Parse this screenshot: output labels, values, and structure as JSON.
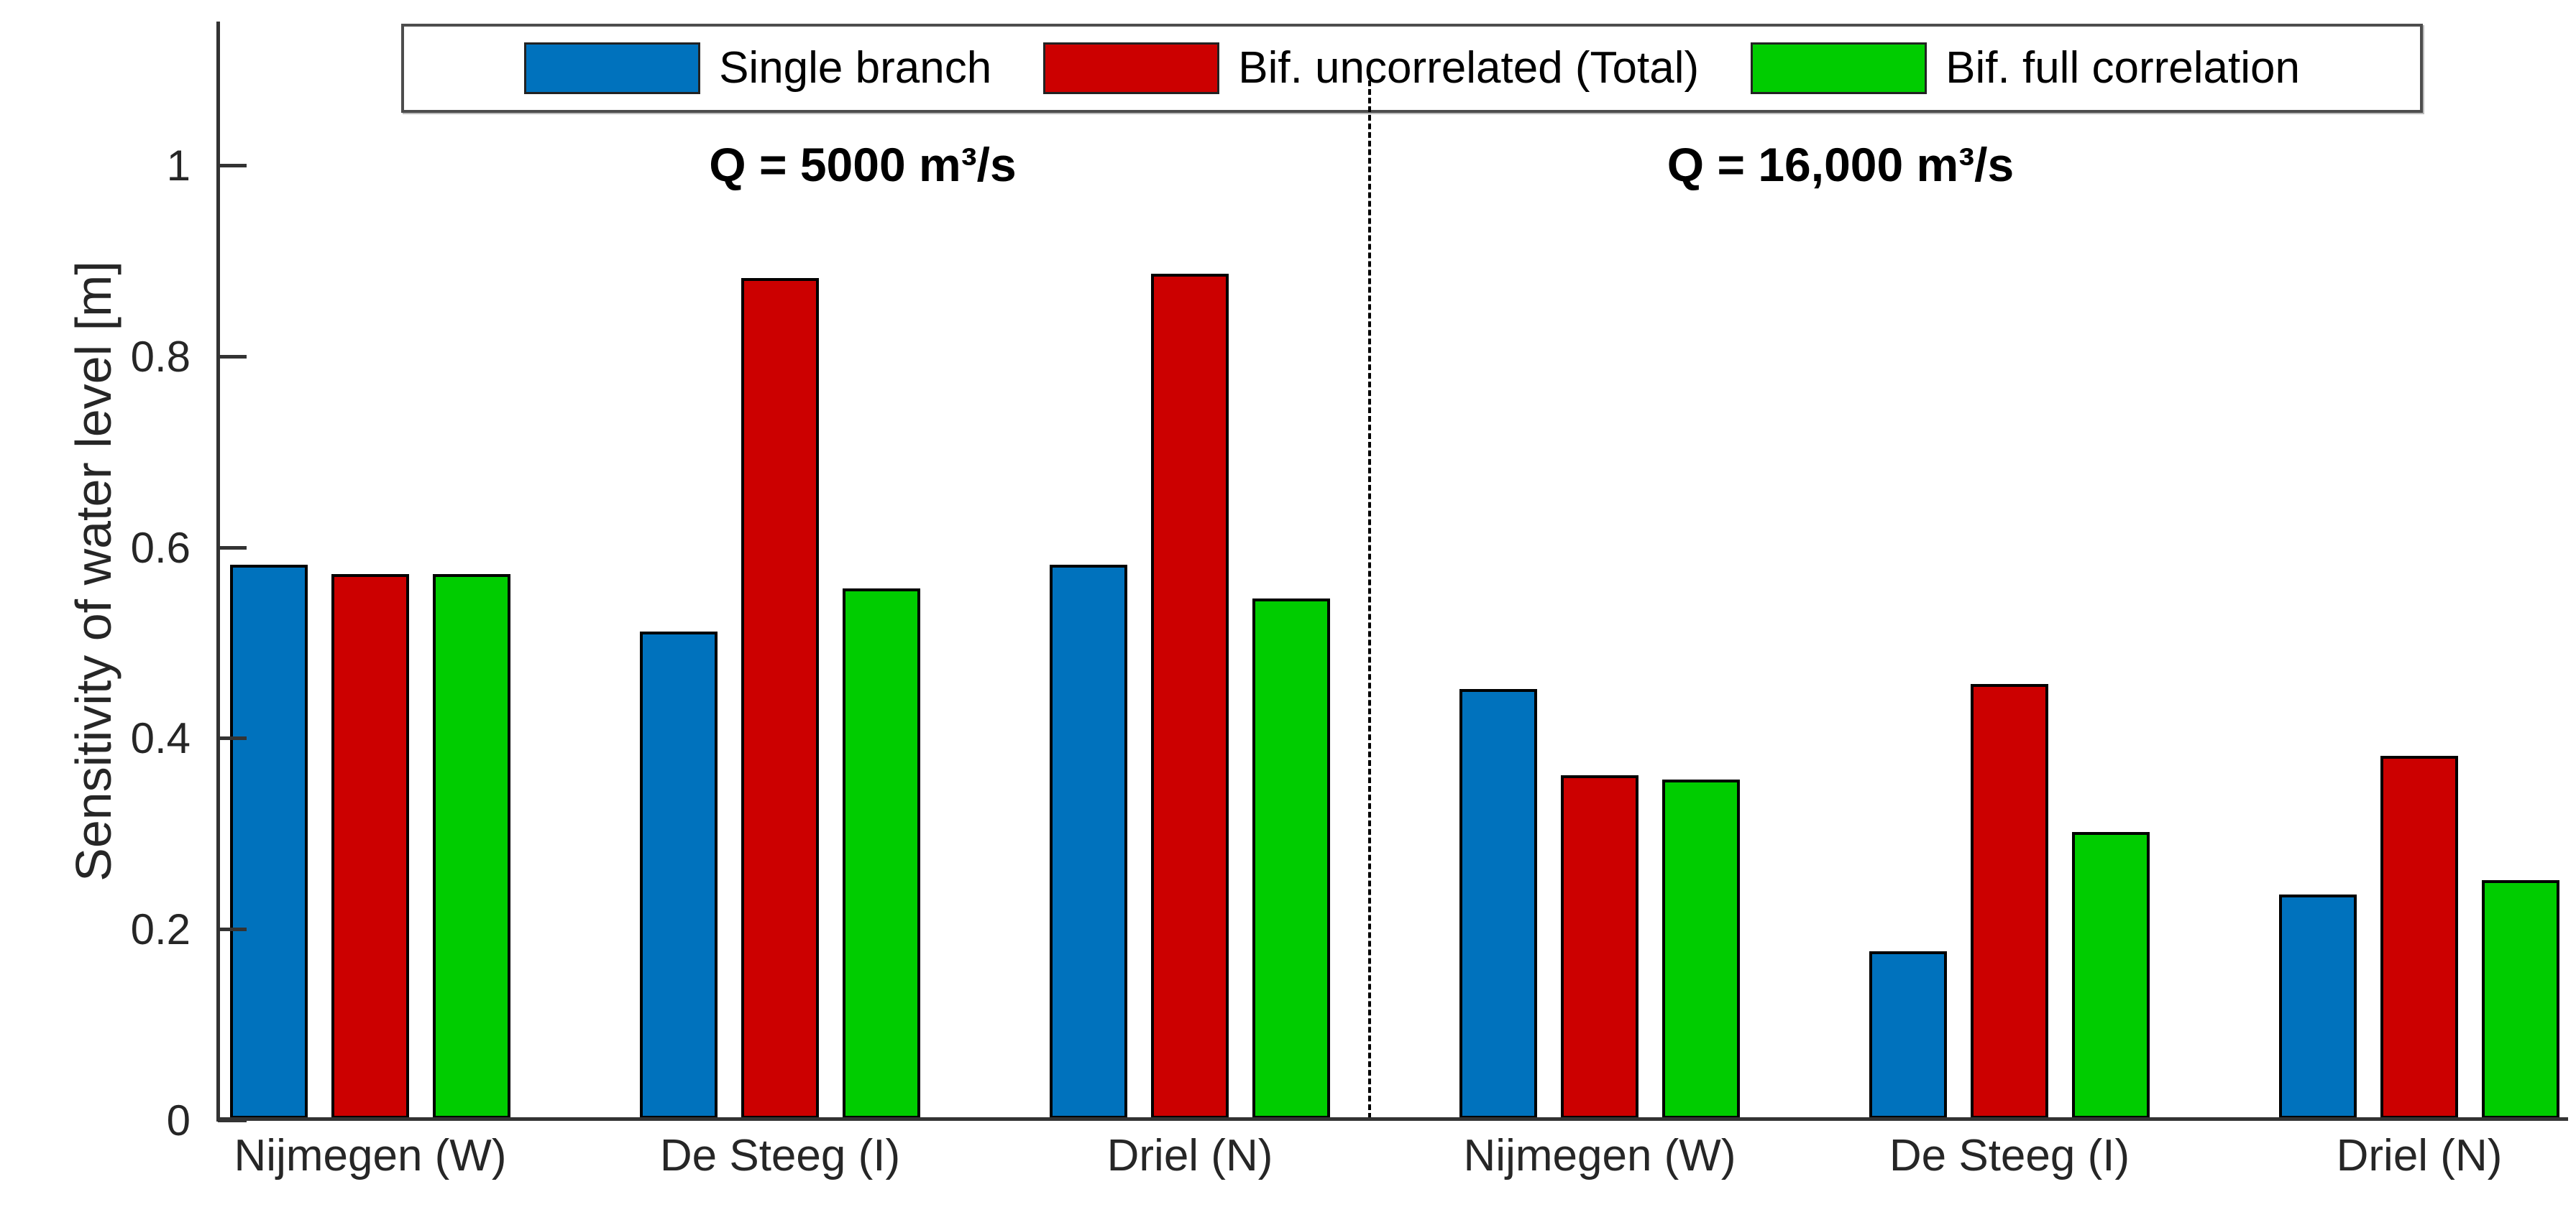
{
  "chart_data": {
    "type": "bar",
    "title": "",
    "xlabel": "",
    "ylabel": "Sensitivity of water level [m]",
    "ylim": [
      0,
      1.15
    ],
    "yticks": [
      0,
      0.2,
      0.4,
      0.6,
      0.8,
      1
    ],
    "ytick_labels": [
      "0",
      "0.2",
      "0.4",
      "0.6",
      "0.8",
      "1"
    ],
    "categories": [
      "Nijmegen (W)",
      "De Steeg (I)",
      "Driel (N)",
      "Nijmegen (W)",
      "De Steeg (I)",
      "Driel (N)"
    ],
    "groups": [
      {
        "title": "Q = 5000 m³/s",
        "category_indexes": [
          0,
          1,
          2
        ]
      },
      {
        "title": "Q = 16,000 m³/s",
        "category_indexes": [
          3,
          4,
          5
        ]
      }
    ],
    "series": [
      {
        "name": "Single branch",
        "color": "#0072BD",
        "values": [
          0.58,
          0.51,
          0.58,
          0.45,
          0.175,
          0.235
        ]
      },
      {
        "name": "Bif. uncorrelated (Total)",
        "color": "#CC0000",
        "values": [
          0.57,
          0.88,
          0.885,
          0.36,
          0.455,
          0.38
        ]
      },
      {
        "name": "Bif. full correlation",
        "color": "#00CC00",
        "values": [
          0.57,
          0.555,
          0.545,
          0.355,
          0.3,
          0.25
        ]
      }
    ],
    "bar_edge_color": "#000000",
    "axis_color": "#333333",
    "legend_position": "top",
    "grid": false,
    "divider": {
      "style": "dashed",
      "location": "between category 3 and 4"
    }
  }
}
